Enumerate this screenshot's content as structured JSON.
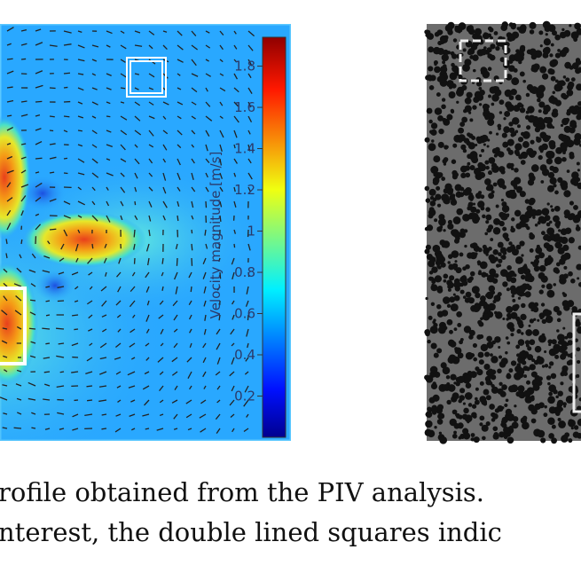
{
  "figure": {
    "colorbar": {
      "label": "Velocity magnitude [m/s]",
      "lim": [
        0,
        1.94
      ],
      "ticks": [
        0.2,
        0.4,
        0.6,
        0.8,
        1,
        1.2,
        1.4,
        1.6,
        1.8
      ]
    },
    "caption": [
      "rofile obtained from the PIV analysis.",
      "nterest, the double lined squares indic"
    ]
  }
}
